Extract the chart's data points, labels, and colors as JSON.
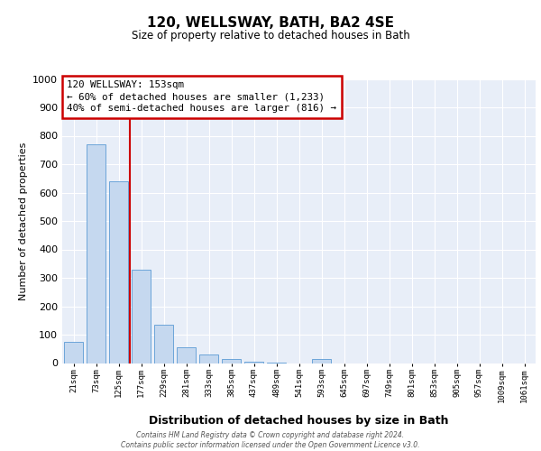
{
  "title": "120, WELLSWAY, BATH, BA2 4SE",
  "subtitle": "Size of property relative to detached houses in Bath",
  "xlabel": "Distribution of detached houses by size in Bath",
  "ylabel": "Number of detached properties",
  "categories": [
    "21sqm",
    "73sqm",
    "125sqm",
    "177sqm",
    "229sqm",
    "281sqm",
    "333sqm",
    "385sqm",
    "437sqm",
    "489sqm",
    "541sqm",
    "593sqm",
    "645sqm",
    "697sqm",
    "749sqm",
    "801sqm",
    "853sqm",
    "905sqm",
    "957sqm",
    "1009sqm",
    "1061sqm"
  ],
  "values": [
    75,
    770,
    640,
    330,
    135,
    55,
    30,
    15,
    5,
    2,
    0,
    15,
    0,
    0,
    0,
    0,
    0,
    0,
    0,
    0,
    0
  ],
  "bar_color": "#c5d8ef",
  "bar_edge_color": "#5b9bd5",
  "ylim": [
    0,
    1000
  ],
  "yticks": [
    0,
    100,
    200,
    300,
    400,
    500,
    600,
    700,
    800,
    900,
    1000
  ],
  "red_line_x": 2.5,
  "annotation_title": "120 WELLSWAY: 153sqm",
  "annotation_line1": "← 60% of detached houses are smaller (1,233)",
  "annotation_line2": "40% of semi-detached houses are larger (816) →",
  "annotation_box_color": "#ffffff",
  "annotation_box_edge": "#cc0000",
  "red_line_color": "#cc0000",
  "background_color": "#e8eef8",
  "grid_color": "#ffffff",
  "footer_line1": "Contains HM Land Registry data © Crown copyright and database right 2024.",
  "footer_line2": "Contains public sector information licensed under the Open Government Licence v3.0."
}
